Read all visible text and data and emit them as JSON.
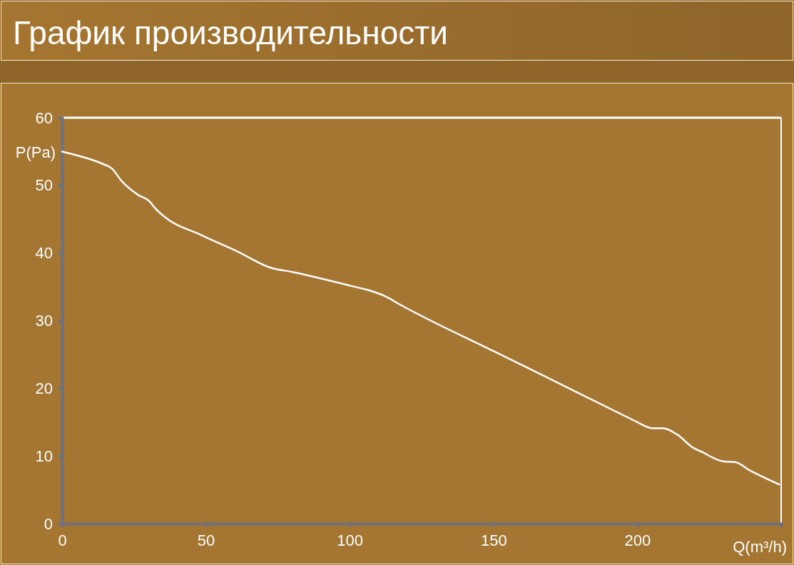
{
  "chart_data": {
    "type": "line",
    "title": "График производительности",
    "xlabel": "Q(m³/h)",
    "ylabel": "P(Pa)",
    "xlim": [
      0,
      250
    ],
    "ylim": [
      0,
      60
    ],
    "xticks": [
      0,
      50,
      100,
      150,
      200
    ],
    "yticks": [
      0,
      10,
      20,
      30,
      40,
      50,
      60
    ],
    "x": [
      0,
      8,
      14,
      17.3,
      20.6,
      26.4,
      30.5,
      32.2,
      35.5,
      48.7,
      61.1,
      72.7,
      80.1,
      100.8,
      107.4,
      112.4,
      117.4,
      150,
      162,
      200,
      203.4,
      205,
      208.8,
      214.1,
      219.1,
      222.4,
      229.9,
      234,
      239,
      249.3
    ],
    "series": [
      {
        "color": "#ffffff",
        "values": [
          55,
          54.1,
          53.2,
          52.5,
          50.7,
          48.6,
          47.6,
          46.7,
          45.4,
          42.6,
          40.2,
          37.8,
          37.2,
          35.1,
          34.4,
          33.6,
          32.4,
          25.5,
          23,
          15,
          14.3,
          14.1,
          14.1,
          13.1,
          11.3,
          10.6,
          9.2,
          9.1,
          7.9,
          5.8
        ]
      }
    ]
  }
}
